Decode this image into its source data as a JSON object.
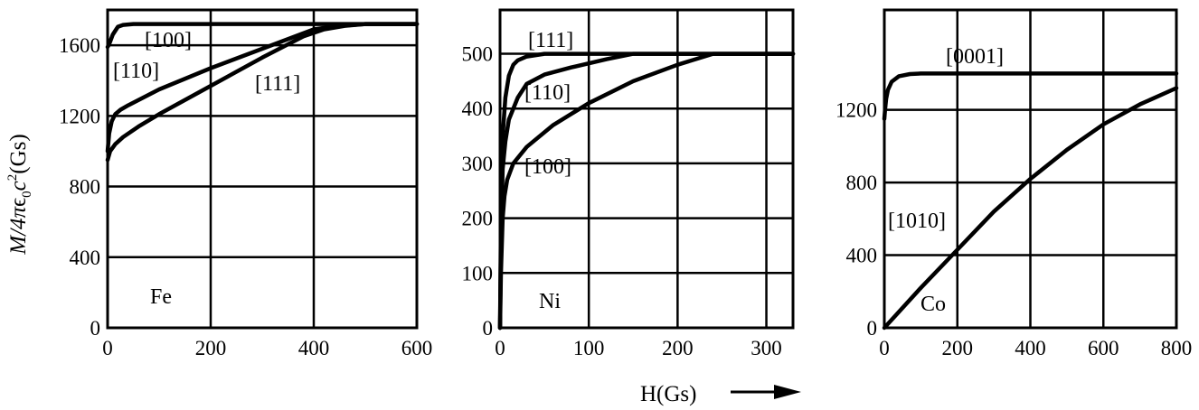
{
  "figure": {
    "ylabel_parts": {
      "pre": "M/4π",
      "eps": "ϵ",
      "sub": "0",
      "c": "c",
      "sup": "2",
      "post": "(Gs)"
    },
    "xlabel": "H(Gs)",
    "arrow_icon": "long-right-arrow-icon"
  },
  "chart_data": [
    {
      "type": "line",
      "material": "Fe",
      "xlim": [
        0,
        600
      ],
      "ylim": [
        0,
        1800
      ],
      "xticks": [
        0,
        200,
        400,
        600
      ],
      "yticks": [
        0,
        400,
        800,
        1200,
        1600
      ],
      "grid": true,
      "series": [
        {
          "name": "[100]",
          "x": [
            0,
            2,
            5,
            10,
            20,
            30,
            50,
            80,
            120,
            200,
            600
          ],
          "y": [
            1590,
            1600,
            1620,
            1660,
            1705,
            1715,
            1720,
            1720,
            1720,
            1720,
            1720
          ]
        },
        {
          "name": "[110]",
          "x": [
            0,
            3,
            8,
            15,
            25,
            40,
            60,
            100,
            200,
            300,
            400,
            450,
            500,
            600
          ],
          "y": [
            1000,
            1100,
            1170,
            1210,
            1235,
            1260,
            1290,
            1350,
            1470,
            1580,
            1690,
            1710,
            1720,
            1720
          ]
        },
        {
          "name": "[111]",
          "x": [
            0,
            5,
            15,
            30,
            60,
            100,
            200,
            300,
            380,
            420,
            460,
            500,
            600
          ],
          "y": [
            950,
            1000,
            1040,
            1080,
            1140,
            1210,
            1370,
            1530,
            1650,
            1690,
            1710,
            1720,
            1720
          ]
        }
      ],
      "annotations": [
        "[100]",
        "[110]",
        "[111]",
        "Fe"
      ]
    },
    {
      "type": "line",
      "material": "Ni",
      "xlim": [
        0,
        330
      ],
      "ylim": [
        0,
        580
      ],
      "xticks": [
        0,
        100,
        200,
        300
      ],
      "yticks": [
        0,
        100,
        200,
        300,
        400,
        500
      ],
      "grid": true,
      "series": [
        {
          "name": "[111]",
          "x": [
            0,
            1,
            3,
            6,
            10,
            15,
            20,
            30,
            50,
            80,
            330
          ],
          "y": [
            0,
            200,
            350,
            420,
            460,
            480,
            488,
            495,
            500,
            500,
            500
          ]
        },
        {
          "name": "[110]",
          "x": [
            0,
            1,
            3,
            6,
            10,
            20,
            30,
            50,
            80,
            120,
            150,
            330
          ],
          "y": [
            0,
            160,
            290,
            340,
            380,
            420,
            445,
            462,
            475,
            490,
            500,
            500
          ]
        },
        {
          "name": "[100]",
          "x": [
            0,
            1,
            3,
            5,
            8,
            15,
            30,
            60,
            100,
            150,
            200,
            240,
            330
          ],
          "y": [
            0,
            100,
            200,
            240,
            270,
            300,
            330,
            370,
            410,
            450,
            480,
            500,
            500
          ]
        }
      ],
      "annotations": [
        "[111]",
        "[110]",
        "[100]",
        "Ni"
      ]
    },
    {
      "type": "line",
      "material": "Co",
      "xlim": [
        0,
        800
      ],
      "ylim": [
        0,
        1750
      ],
      "xticks": [
        0,
        200,
        400,
        600,
        800
      ],
      "yticks": [
        0,
        400,
        800,
        1200
      ],
      "grid": true,
      "series": [
        {
          "name": "[0001]",
          "x": [
            0,
            2,
            5,
            10,
            20,
            40,
            70,
            100,
            150,
            200,
            800
          ],
          "y": [
            1150,
            1200,
            1260,
            1310,
            1355,
            1385,
            1397,
            1400,
            1400,
            1400,
            1400
          ]
        },
        {
          "name": "[1010]",
          "x": [
            0,
            100,
            200,
            300,
            400,
            500,
            600,
            700,
            800
          ],
          "y": [
            0,
            220,
            430,
            640,
            820,
            980,
            1120,
            1230,
            1320
          ]
        }
      ],
      "annotations": [
        "[0001]",
        "[1010]",
        "Co"
      ]
    }
  ]
}
